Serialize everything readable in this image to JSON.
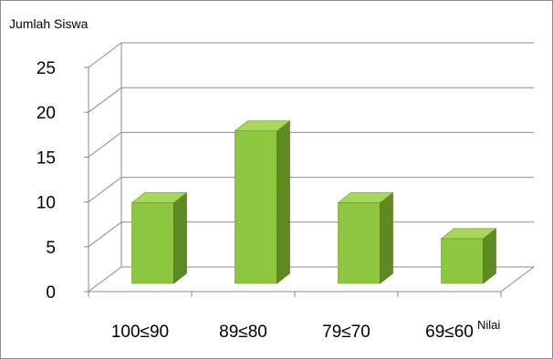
{
  "chart_data": {
    "type": "bar",
    "ylabel": "Jumlah Siswa",
    "xlabel": "Nilai",
    "categories": [
      "100≤90",
      "89≤80",
      "79≤70",
      "69≤60"
    ],
    "values": [
      9,
      17,
      9,
      5
    ],
    "ylim": [
      0,
      25
    ],
    "yticks": [
      0,
      5,
      10,
      15,
      20,
      25
    ],
    "grid": true,
    "style": "3d-column",
    "bar_color": "#8dc63f",
    "bar_side_color": "#5f8a22",
    "bar_top_color": "#a6d65a"
  }
}
